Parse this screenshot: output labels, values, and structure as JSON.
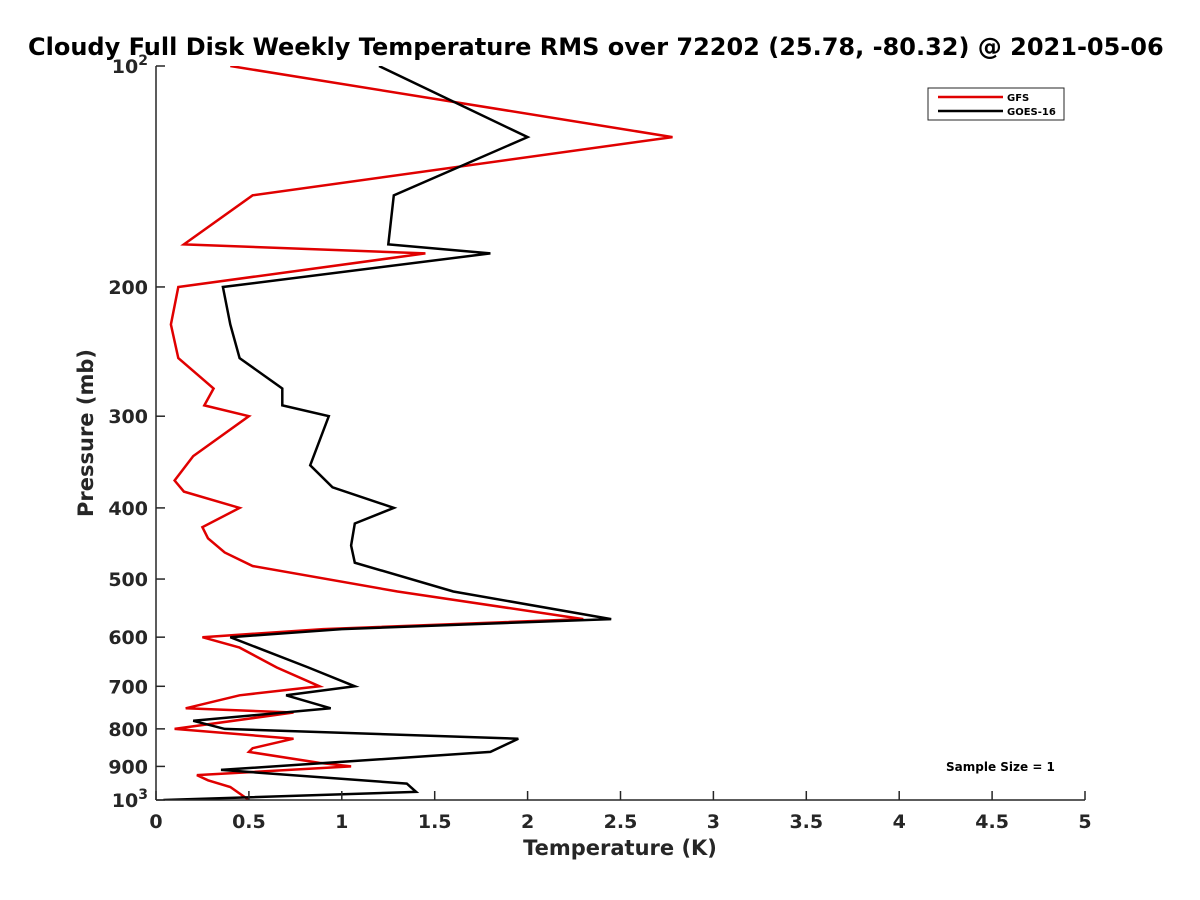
{
  "chart_data": {
    "type": "line",
    "title": "Cloudy Full Disk Weekly Temperature RMS over 72202 (25.78, -80.32) @ 2021-05-06",
    "xlabel": "Temperature (K)",
    "ylabel": "Pressure (mb)",
    "xlim": [
      0,
      5
    ],
    "ylim": [
      100,
      1000
    ],
    "y_scale": "log",
    "y_reversed": true,
    "grid": false,
    "legend_position": "top-right",
    "x_ticks": [
      "0",
      "0.5",
      "1",
      "1.5",
      "2",
      "2.5",
      "3",
      "3.5",
      "4",
      "4.5",
      "5"
    ],
    "y_ticks": [
      {
        "value": 100,
        "base": "10",
        "exp": "2"
      },
      {
        "value": 200,
        "label": "200"
      },
      {
        "value": 300,
        "label": "300"
      },
      {
        "value": 400,
        "label": "400"
      },
      {
        "value": 500,
        "label": "500"
      },
      {
        "value": 600,
        "label": "600"
      },
      {
        "value": 700,
        "label": "700"
      },
      {
        "value": 800,
        "label": "800"
      },
      {
        "value": 900,
        "label": "900"
      },
      {
        "value": 1000,
        "base": "10",
        "exp": "3"
      }
    ],
    "annotation": "Sample Size = 1",
    "series": [
      {
        "name": "GFS",
        "color": "#e00000",
        "points": [
          [
            0.4,
            100
          ],
          [
            2.78,
            125
          ],
          [
            0.52,
            150
          ],
          [
            0.15,
            175
          ],
          [
            1.45,
            180
          ],
          [
            0.12,
            200
          ],
          [
            0.08,
            225
          ],
          [
            0.12,
            250
          ],
          [
            0.31,
            275
          ],
          [
            0.26,
            290
          ],
          [
            0.5,
            300
          ],
          [
            0.2,
            340
          ],
          [
            0.1,
            367
          ],
          [
            0.15,
            380
          ],
          [
            0.45,
            400
          ],
          [
            0.25,
            425
          ],
          [
            0.28,
            440
          ],
          [
            0.37,
            460
          ],
          [
            0.52,
            480
          ],
          [
            1.3,
            520
          ],
          [
            2.3,
            567
          ],
          [
            0.9,
            585
          ],
          [
            0.25,
            600
          ],
          [
            0.45,
            620
          ],
          [
            0.65,
            660
          ],
          [
            0.88,
            700
          ],
          [
            0.45,
            720
          ],
          [
            0.16,
            750
          ],
          [
            0.74,
            760
          ],
          [
            0.1,
            800
          ],
          [
            0.74,
            825
          ],
          [
            0.52,
            850
          ],
          [
            0.5,
            860
          ],
          [
            0.88,
            890
          ],
          [
            1.05,
            900
          ],
          [
            0.22,
            925
          ],
          [
            0.28,
            940
          ],
          [
            0.4,
            960
          ],
          [
            0.5,
            1000
          ]
        ]
      },
      {
        "name": "GOES-16",
        "color": "#000000",
        "points": [
          [
            1.2,
            100
          ],
          [
            2.0,
            125
          ],
          [
            1.28,
            150
          ],
          [
            1.25,
            175
          ],
          [
            1.8,
            180
          ],
          [
            0.36,
            200
          ],
          [
            0.4,
            225
          ],
          [
            0.45,
            250
          ],
          [
            0.68,
            275
          ],
          [
            0.68,
            290
          ],
          [
            0.93,
            300
          ],
          [
            0.83,
            350
          ],
          [
            0.95,
            375
          ],
          [
            1.28,
            400
          ],
          [
            1.07,
            420
          ],
          [
            1.05,
            450
          ],
          [
            1.07,
            475
          ],
          [
            1.6,
            520
          ],
          [
            2.45,
            567
          ],
          [
            1.0,
            585
          ],
          [
            0.4,
            600
          ],
          [
            0.58,
            625
          ],
          [
            0.82,
            660
          ],
          [
            1.07,
            700
          ],
          [
            0.7,
            720
          ],
          [
            0.94,
            750
          ],
          [
            0.2,
            780
          ],
          [
            0.37,
            800
          ],
          [
            1.95,
            825
          ],
          [
            1.8,
            860
          ],
          [
            0.35,
            910
          ],
          [
            1.35,
            950
          ],
          [
            1.4,
            975
          ],
          [
            0.04,
            1000
          ]
        ]
      }
    ]
  }
}
